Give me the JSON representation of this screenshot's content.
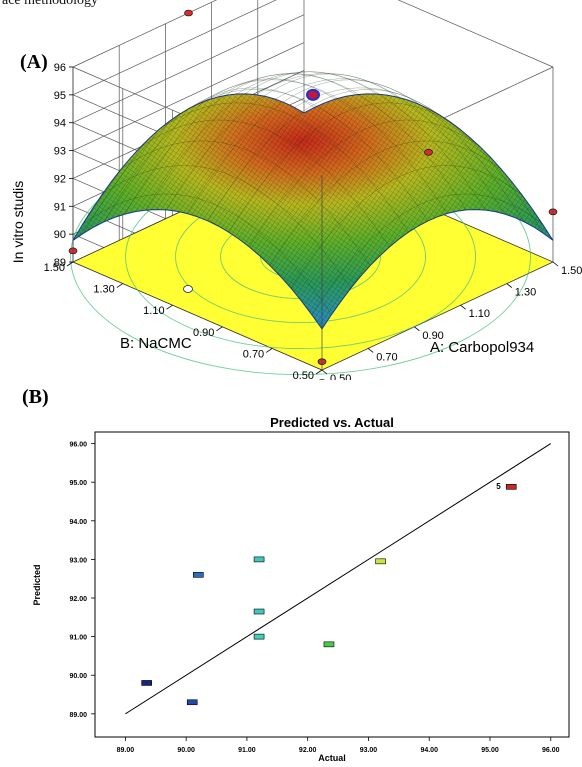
{
  "header_fragment": "ace methodology",
  "panel_a": {
    "label": "(A)",
    "chart_data": {
      "type": "surface3d",
      "zlabel": "In vitro studis",
      "xlabel": "A: Carbopol934",
      "ylabel": "B: NaCMC",
      "x_ticks": [
        "0.50",
        "0.70",
        "0.90",
        "1.10",
        "1.30",
        "1.50"
      ],
      "y_ticks": [
        "0.50",
        "0.70",
        "0.90",
        "1.10",
        "1.30",
        "1.50"
      ],
      "z_ticks": [
        "89",
        "90",
        "91",
        "92",
        "93",
        "94",
        "95",
        "96"
      ],
      "xlim": [
        0.5,
        1.5
      ],
      "ylim": [
        0.5,
        1.5
      ],
      "zlim": [
        89,
        96
      ],
      "surface_corners": {
        "a_low_b_low": 89.3,
        "a_high_b_high": 91.0,
        "a_high_b_low": 90.8,
        "a_low_b_high": 89.4
      },
      "surface_peak": 95.0,
      "contour_floor_color": "#ffff33"
    }
  },
  "panel_b": {
    "label": "(B)",
    "chart_data": {
      "type": "scatter",
      "title": "Predicted vs. Actual",
      "xlabel": "Actual",
      "ylabel": "Predicted",
      "xlim": [
        88.5,
        96.3
      ],
      "ylim": [
        88.4,
        96.3
      ],
      "x_ticks": [
        "89.00",
        "90.00",
        "91.00",
        "92.00",
        "93.00",
        "94.00",
        "95.00",
        "96.00"
      ],
      "y_ticks": [
        "89.00",
        "90.00",
        "91.00",
        "92.00",
        "93.00",
        "94.00",
        "95.00",
        "96.00"
      ],
      "reference_line": {
        "from": [
          89.0,
          89.0
        ],
        "to": [
          96.0,
          96.0
        ]
      },
      "point_label": "5",
      "points": [
        {
          "x": 89.35,
          "y": 89.8,
          "color": "#1a237e"
        },
        {
          "x": 90.1,
          "y": 89.3,
          "color": "#1e4aa8"
        },
        {
          "x": 90.2,
          "y": 92.6,
          "color": "#2a6cc4"
        },
        {
          "x": 91.2,
          "y": 93.0,
          "color": "#40c8c0"
        },
        {
          "x": 91.2,
          "y": 91.65,
          "color": "#40c8c0"
        },
        {
          "x": 91.2,
          "y": 91.0,
          "color": "#40d0b8"
        },
        {
          "x": 92.35,
          "y": 90.8,
          "color": "#4cc94c"
        },
        {
          "x": 93.2,
          "y": 92.95,
          "color": "#c8e640"
        },
        {
          "x": 95.35,
          "y": 94.88,
          "color": "#c62828"
        }
      ]
    }
  }
}
